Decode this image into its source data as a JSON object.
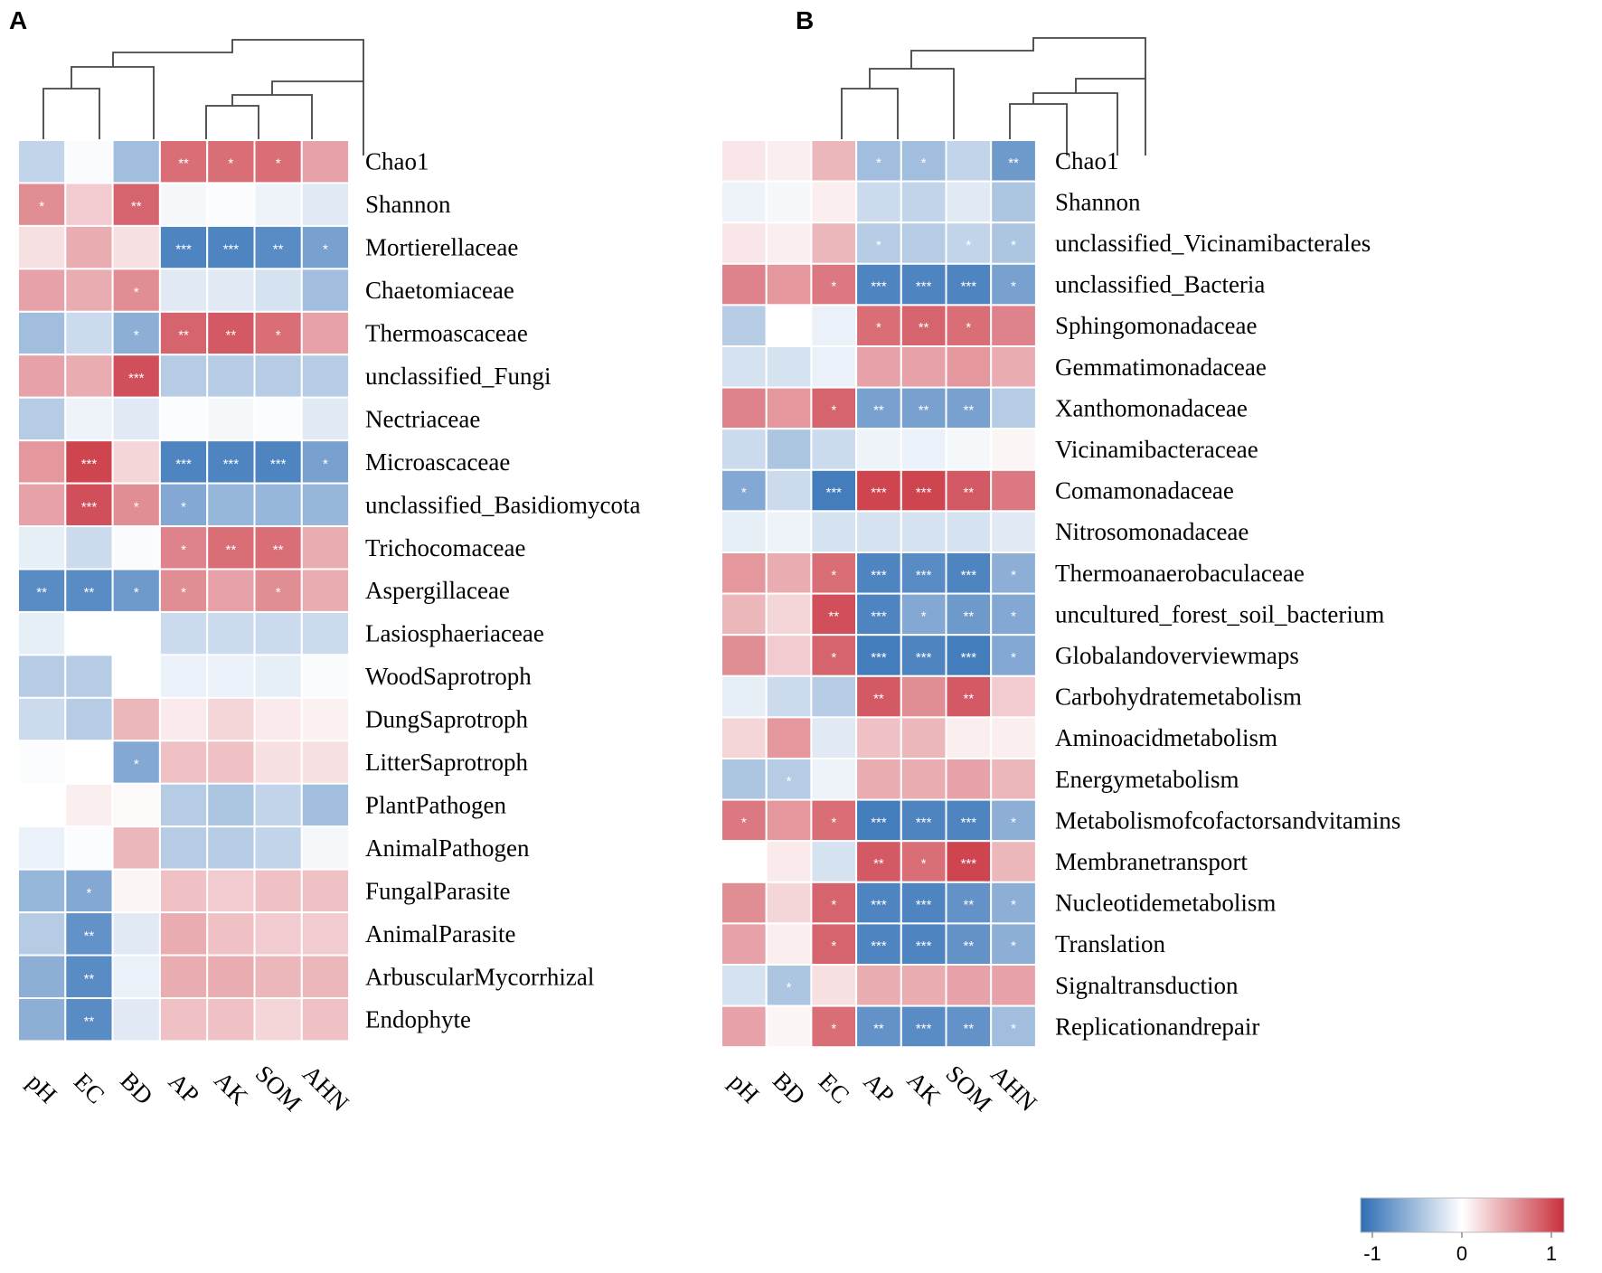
{
  "colorscale": {
    "low": "#2f6eb5",
    "mid": "#ffffff",
    "high": "#c8303d",
    "min": -1,
    "max": 1
  },
  "colorbar": {
    "ticks": [
      "-1",
      "0",
      "1"
    ],
    "tick_values": [
      -1,
      0,
      1
    ]
  },
  "chart_data": [
    {
      "type": "heatmap",
      "panel": "A",
      "title": "A",
      "columns": [
        "pH",
        "EC",
        "BD",
        "AP",
        "AK",
        "SOM",
        "AHN"
      ],
      "rows": [
        "Chao1",
        "Shannon",
        "Mortierellaceae",
        "Chaetomiaceae",
        "Thermoascaceae",
        "unclassified_Fungi",
        "Nectriaceae",
        "Microascaceae",
        "unclassified_Basidiomycota",
        "Trichocomaceae",
        "Aspergillaceae",
        "Lasiosphaeriaceae",
        "WoodSaprotroph",
        "DungSaprotroph",
        "LitterSaprotroph",
        "PlantPathogen",
        "AnimalPathogen",
        "FungalParasite",
        "AnimalParasite",
        "ArbuscularMycorrhizal",
        "Endophyte"
      ],
      "values": [
        [
          -0.3,
          -0.03,
          -0.45,
          0.7,
          0.7,
          0.7,
          0.45
        ],
        [
          0.55,
          0.25,
          0.75,
          -0.05,
          -0.02,
          -0.08,
          -0.15
        ],
        [
          0.15,
          0.4,
          0.15,
          -0.85,
          -0.85,
          -0.8,
          -0.65
        ],
        [
          0.45,
          0.4,
          0.55,
          -0.15,
          -0.15,
          -0.2,
          -0.45
        ],
        [
          -0.45,
          -0.25,
          -0.55,
          0.75,
          0.8,
          0.7,
          0.45
        ],
        [
          0.45,
          0.4,
          0.85,
          -0.35,
          -0.35,
          -0.35,
          -0.35
        ],
        [
          -0.35,
          -0.08,
          -0.15,
          -0.02,
          -0.05,
          -0.02,
          -0.15
        ],
        [
          0.5,
          0.9,
          0.2,
          -0.85,
          -0.85,
          -0.85,
          -0.65
        ],
        [
          0.45,
          0.85,
          0.55,
          -0.6,
          -0.5,
          -0.5,
          -0.5
        ],
        [
          -0.12,
          -0.25,
          -0.03,
          0.6,
          0.7,
          0.7,
          0.4
        ],
        [
          -0.8,
          -0.8,
          -0.7,
          0.55,
          0.45,
          0.55,
          0.4
        ],
        [
          -0.12,
          0.0,
          0.0,
          -0.25,
          -0.25,
          -0.25,
          -0.25
        ],
        [
          -0.35,
          -0.35,
          0.0,
          -0.1,
          -0.1,
          -0.12,
          -0.03
        ],
        [
          -0.25,
          -0.35,
          0.35,
          0.1,
          0.2,
          0.1,
          0.07
        ],
        [
          -0.02,
          0.0,
          -0.6,
          0.3,
          0.3,
          0.15,
          0.15
        ],
        [
          0.0,
          0.08,
          0.03,
          -0.35,
          -0.4,
          -0.3,
          -0.45
        ],
        [
          -0.1,
          -0.02,
          0.35,
          -0.35,
          -0.35,
          -0.3,
          -0.05
        ],
        [
          -0.5,
          -0.6,
          0.05,
          0.3,
          0.25,
          0.3,
          0.3
        ],
        [
          -0.35,
          -0.75,
          -0.15,
          0.4,
          0.3,
          0.25,
          0.25
        ],
        [
          -0.55,
          -0.8,
          -0.1,
          0.4,
          0.4,
          0.35,
          0.35
        ],
        [
          -0.55,
          -0.8,
          -0.15,
          0.3,
          0.3,
          0.2,
          0.3
        ]
      ],
      "significance": [
        [
          "",
          "",
          "",
          "**",
          "*",
          "*",
          ""
        ],
        [
          "*",
          "",
          "**",
          "",
          "",
          "",
          ""
        ],
        [
          "",
          "",
          "",
          "***",
          "***",
          "**",
          "*"
        ],
        [
          "",
          "",
          "*",
          "",
          "",
          "",
          ""
        ],
        [
          "",
          "",
          "*",
          "**",
          "**",
          "*",
          ""
        ],
        [
          "",
          "",
          "***",
          "",
          "",
          "",
          ""
        ],
        [
          "",
          "",
          "",
          "",
          "",
          "",
          ""
        ],
        [
          "",
          "***",
          "",
          "***",
          "***",
          "***",
          "*"
        ],
        [
          "",
          "***",
          "*",
          "*",
          "",
          "",
          ""
        ],
        [
          "",
          "",
          "",
          "*",
          "**",
          "**",
          ""
        ],
        [
          "**",
          "**",
          "*",
          "*",
          "",
          "*",
          ""
        ],
        [
          "",
          "",
          "",
          "",
          "",
          "",
          ""
        ],
        [
          "",
          "",
          "",
          "",
          "",
          "",
          ""
        ],
        [
          "",
          "",
          "",
          "",
          "",
          "",
          ""
        ],
        [
          "",
          "",
          "*",
          "",
          "",
          "",
          ""
        ],
        [
          "",
          "",
          "",
          "",
          "",
          "",
          ""
        ],
        [
          "",
          "",
          "",
          "",
          "",
          "",
          ""
        ],
        [
          "",
          "*",
          "",
          "",
          "",
          "",
          ""
        ],
        [
          "",
          "**",
          "",
          "",
          "",
          "",
          ""
        ],
        [
          "",
          "**",
          "",
          "",
          "",
          "",
          ""
        ],
        [
          "",
          "**",
          "",
          "",
          "",
          "",
          ""
        ]
      ]
    },
    {
      "type": "heatmap",
      "panel": "B",
      "title": "B",
      "columns": [
        "pH",
        "BD",
        "EC",
        "AP",
        "AK",
        "SOM",
        "AHN"
      ],
      "rows": [
        "Chao1",
        "Shannon",
        "unclassified_Vicinamibacterales",
        "unclassified_Bacteria",
        "Sphingomonadaceae",
        "Gemmatimonadaceae",
        "Xanthomonadaceae",
        "Vicinamibacteraceae",
        "Comamonadaceae",
        "Nitrosomonadaceae",
        "Thermoanaerobaculaceae",
        "uncultured_forest_soil_bacterium",
        "Globalandoverviewmaps",
        "Carbohydratemetabolism",
        "Aminoacidmetabolism",
        "Energymetabolism",
        "Metabolismofcofactorsandvitamins",
        "Membranetransport",
        "Nucleotidemetabolism",
        "Translation",
        "Signaltransduction",
        "Replicationandrepair"
      ],
      "values": [
        [
          0.12,
          0.08,
          0.35,
          -0.45,
          -0.45,
          -0.3,
          -0.7
        ],
        [
          -0.08,
          -0.05,
          0.08,
          -0.25,
          -0.3,
          -0.15,
          -0.4
        ],
        [
          0.12,
          0.08,
          0.35,
          -0.35,
          -0.35,
          -0.3,
          -0.4
        ],
        [
          0.6,
          0.5,
          0.65,
          -0.85,
          -0.85,
          -0.85,
          -0.65
        ],
        [
          -0.35,
          0.0,
          -0.1,
          0.7,
          0.75,
          0.7,
          0.6
        ],
        [
          -0.2,
          -0.2,
          -0.1,
          0.45,
          0.45,
          0.5,
          0.4
        ],
        [
          0.6,
          0.5,
          0.75,
          -0.65,
          -0.65,
          -0.65,
          -0.35
        ],
        [
          -0.25,
          -0.4,
          -0.25,
          -0.08,
          -0.1,
          -0.05,
          0.05
        ],
        [
          -0.6,
          -0.25,
          -0.9,
          0.9,
          0.9,
          0.8,
          0.65
        ],
        [
          -0.12,
          -0.08,
          -0.2,
          -0.2,
          -0.2,
          -0.2,
          -0.15
        ],
        [
          0.5,
          0.4,
          0.7,
          -0.85,
          -0.8,
          -0.85,
          -0.55
        ],
        [
          0.35,
          0.2,
          0.85,
          -0.85,
          -0.6,
          -0.7,
          -0.6
        ],
        [
          0.55,
          0.25,
          0.75,
          -0.9,
          -0.85,
          -0.9,
          -0.6
        ],
        [
          -0.12,
          -0.25,
          -0.35,
          0.8,
          0.55,
          0.8,
          0.25
        ],
        [
          0.2,
          0.5,
          -0.15,
          0.3,
          0.35,
          0.08,
          0.08
        ],
        [
          -0.4,
          -0.35,
          -0.08,
          0.4,
          0.4,
          0.45,
          0.35
        ],
        [
          0.65,
          0.5,
          0.7,
          -0.9,
          -0.85,
          -0.85,
          -0.55
        ],
        [
          0.0,
          0.1,
          -0.2,
          0.8,
          0.7,
          0.9,
          0.35
        ],
        [
          0.55,
          0.2,
          0.75,
          -0.85,
          -0.85,
          -0.75,
          -0.55
        ],
        [
          0.45,
          0.08,
          0.75,
          -0.85,
          -0.85,
          -0.75,
          -0.55
        ],
        [
          -0.2,
          -0.4,
          0.15,
          0.4,
          0.4,
          0.45,
          0.45
        ],
        [
          0.45,
          0.05,
          0.7,
          -0.75,
          -0.8,
          -0.75,
          -0.45
        ]
      ],
      "significance": [
        [
          "",
          "",
          "",
          "*",
          "*",
          "",
          "**"
        ],
        [
          "",
          "",
          "",
          "",
          "",
          "",
          ""
        ],
        [
          "",
          "",
          "",
          "*",
          "",
          "*",
          "*"
        ],
        [
          "",
          "",
          "*",
          "***",
          "***",
          "***",
          "*"
        ],
        [
          "",
          "",
          "",
          "*",
          "**",
          "*",
          ""
        ],
        [
          "",
          "",
          "",
          "",
          "",
          "",
          ""
        ],
        [
          "",
          "",
          "*",
          "**",
          "**",
          "**",
          ""
        ],
        [
          "",
          "",
          "",
          "",
          "",
          "",
          ""
        ],
        [
          "*",
          "",
          "***",
          "***",
          "***",
          "**",
          ""
        ],
        [
          "",
          "",
          "",
          "",
          "",
          "",
          ""
        ],
        [
          "",
          "",
          "*",
          "***",
          "***",
          "***",
          "*"
        ],
        [
          "",
          "",
          "**",
          "***",
          "*",
          "**",
          "*"
        ],
        [
          "",
          "",
          "*",
          "***",
          "***",
          "***",
          "*"
        ],
        [
          "",
          "",
          "",
          "**",
          "",
          "**",
          ""
        ],
        [
          "",
          "",
          "",
          "",
          "",
          "",
          ""
        ],
        [
          "",
          "*",
          "",
          "",
          "",
          "",
          ""
        ],
        [
          "*",
          "",
          "*",
          "***",
          "***",
          "***",
          "*"
        ],
        [
          "",
          "",
          "",
          "**",
          "*",
          "***",
          ""
        ],
        [
          "",
          "",
          "*",
          "***",
          "***",
          "**",
          "*"
        ],
        [
          "",
          "",
          "*",
          "***",
          "***",
          "**",
          "*"
        ],
        [
          "",
          "*",
          "",
          "",
          "",
          "",
          ""
        ],
        [
          "",
          "",
          "*",
          "**",
          "***",
          "**",
          "*"
        ]
      ]
    }
  ]
}
